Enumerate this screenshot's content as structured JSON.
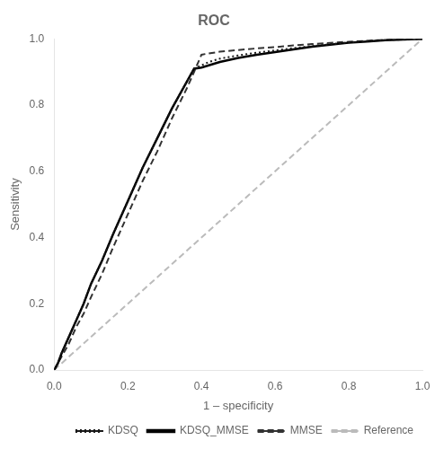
{
  "chart_data": {
    "type": "line",
    "title": "ROC",
    "x_label": "1 – specificity",
    "y_label": "Sensitivity",
    "xlim": [
      0.0,
      1.0
    ],
    "ylim": [
      0.0,
      1.0
    ],
    "xticks": [
      {
        "value": 0.0,
        "label": "0.0"
      },
      0.2,
      0.4,
      0.6,
      0.8,
      {
        "value": 1.0,
        "label": "1.0"
      }
    ],
    "yticks": [
      {
        "value": 0.0,
        "label": "0.0"
      },
      0.2,
      0.4,
      0.6,
      0.8,
      {
        "value": 1.0,
        "label": "1.0"
      }
    ],
    "grid": false,
    "legend": "lower right",
    "series": [
      {
        "name": "KDSQ",
        "color": "#1a1a1a",
        "line_style": "dotted",
        "x": [
          0.0,
          0.01,
          0.02,
          0.04,
          0.06,
          0.08,
          0.1,
          0.13,
          0.16,
          0.2,
          0.24,
          0.28,
          0.32,
          0.36,
          0.38,
          0.4,
          0.42,
          0.45,
          0.5,
          0.55,
          0.6,
          0.65,
          0.7,
          0.75,
          0.8,
          0.85,
          0.9,
          0.95,
          1.0
        ],
        "values": [
          0.0,
          0.02,
          0.05,
          0.1,
          0.15,
          0.2,
          0.26,
          0.33,
          0.41,
          0.51,
          0.61,
          0.7,
          0.79,
          0.87,
          0.91,
          0.92,
          0.93,
          0.94,
          0.95,
          0.958,
          0.965,
          0.972,
          0.978,
          0.984,
          0.989,
          0.993,
          0.996,
          0.998,
          1.0
        ]
      },
      {
        "name": "KDSQ_MMSE",
        "color": "#000000",
        "line_style": "solid",
        "x": [
          0.0,
          0.01,
          0.02,
          0.04,
          0.06,
          0.08,
          0.1,
          0.13,
          0.16,
          0.2,
          0.24,
          0.28,
          0.32,
          0.36,
          0.38,
          0.4,
          0.42,
          0.45,
          0.5,
          0.55,
          0.6,
          0.65,
          0.7,
          0.75,
          0.8,
          0.85,
          0.9,
          0.95,
          1.0
        ],
        "values": [
          0.0,
          0.02,
          0.05,
          0.1,
          0.15,
          0.2,
          0.26,
          0.33,
          0.41,
          0.51,
          0.61,
          0.7,
          0.79,
          0.87,
          0.91,
          0.913,
          0.92,
          0.93,
          0.942,
          0.952,
          0.96,
          0.968,
          0.976,
          0.982,
          0.988,
          0.992,
          0.996,
          0.998,
          1.0
        ]
      },
      {
        "name": "MMSE",
        "color": "#333333",
        "line_style": "dashed",
        "x": [
          0.0,
          0.01,
          0.02,
          0.04,
          0.06,
          0.08,
          0.1,
          0.13,
          0.16,
          0.2,
          0.24,
          0.28,
          0.32,
          0.36,
          0.38,
          0.4,
          0.42,
          0.45,
          0.5,
          0.55,
          0.6,
          0.65,
          0.7,
          0.75,
          0.8,
          0.85,
          0.9,
          0.95,
          1.0
        ],
        "values": [
          0.0,
          0.02,
          0.04,
          0.08,
          0.13,
          0.17,
          0.22,
          0.29,
          0.37,
          0.47,
          0.57,
          0.66,
          0.76,
          0.85,
          0.9,
          0.952,
          0.956,
          0.961,
          0.966,
          0.971,
          0.975,
          0.98,
          0.984,
          0.988,
          0.991,
          0.994,
          0.997,
          0.999,
          1.0
        ]
      },
      {
        "name": "Reference",
        "color": "#bbbbbb",
        "line_style": "dashed",
        "x": [
          0,
          1
        ],
        "values": [
          0,
          1
        ]
      }
    ]
  }
}
